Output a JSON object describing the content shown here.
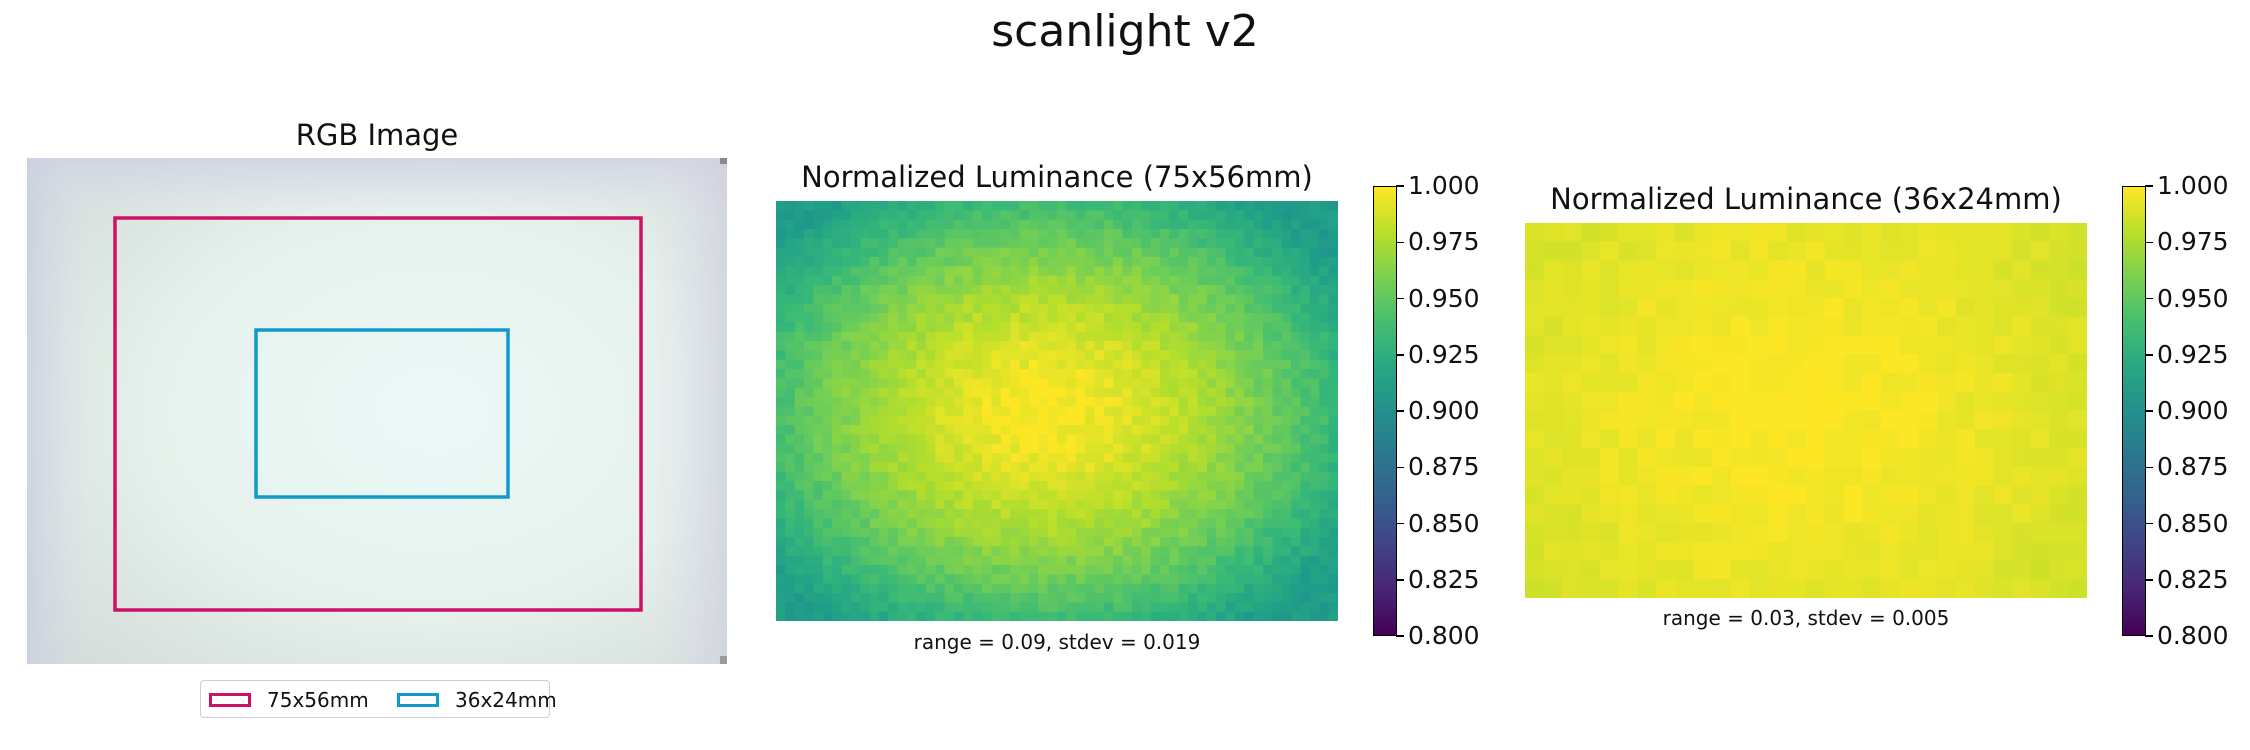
{
  "figure": {
    "title": "scanlight v2"
  },
  "colors": {
    "outer_frame": "#cc1166",
    "inner_frame": "#1199cc",
    "colormap": "viridis"
  },
  "chart_data": [
    {
      "type": "image",
      "title": "RGB Image",
      "legend": {
        "placement": "bottom-center",
        "entries": [
          {
            "label": "75x56mm",
            "color": "#cc1166"
          },
          {
            "label": "36x24mm",
            "color": "#1199cc"
          }
        ]
      }
    },
    {
      "type": "heatmap",
      "title": "Normalized Luminance (75x56mm)",
      "annotation": "range = 0.09, stdev = 0.019",
      "grid_cols": 60,
      "grid_rows": 45,
      "value_max": 1.0,
      "value_min_approx": 0.91,
      "colorbar": {
        "vmin": 0.8,
        "vmax": 1.0,
        "ticks": [
          "0.800",
          "0.825",
          "0.850",
          "0.875",
          "0.900",
          "0.925",
          "0.950",
          "0.975",
          "1.000"
        ]
      }
    },
    {
      "type": "heatmap",
      "title": "Normalized Luminance (36x24mm)",
      "annotation": "range = 0.03, stdev = 0.005",
      "grid_cols": 30,
      "grid_rows": 20,
      "value_max": 1.0,
      "value_min_approx": 0.97,
      "colorbar": {
        "vmin": 0.8,
        "vmax": 1.0,
        "ticks": [
          "0.800",
          "0.825",
          "0.850",
          "0.875",
          "0.900",
          "0.925",
          "0.950",
          "0.975",
          "1.000"
        ]
      }
    }
  ]
}
